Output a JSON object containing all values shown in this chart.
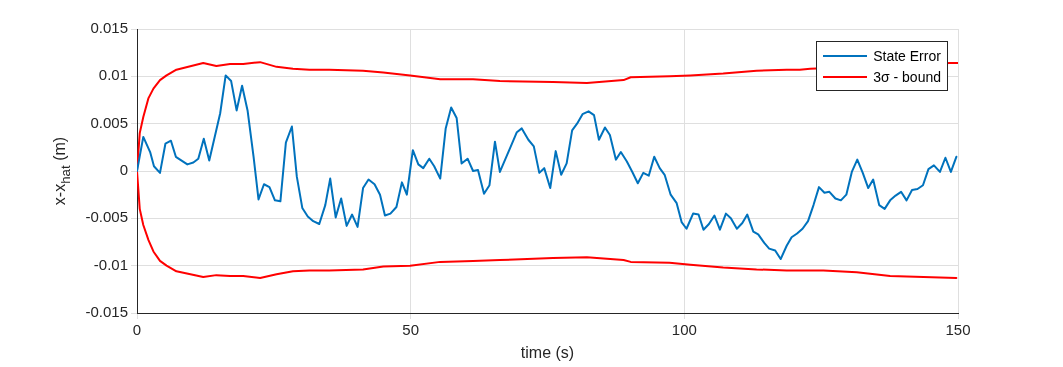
{
  "chart_data": {
    "type": "line",
    "xlabel": "time (s)",
    "ylabel": "x-x$_{hat}$ (m)",
    "xlim": [
      0,
      150
    ],
    "xticks": [
      0,
      50,
      100,
      150
    ],
    "ylim": [
      -0.015,
      0.015
    ],
    "yticks": [
      -0.015,
      -0.01,
      -0.005,
      0,
      0.005,
      0.01,
      0.015
    ],
    "grid": true,
    "legend": "top right",
    "marker": "none",
    "line_style": "solid",
    "series": [
      {
        "name": "State Error",
        "color": "#0072bd",
        "x": [
          0,
          1.15,
          2.4,
          3.1,
          4.2,
          5.2,
          6.2,
          7.1,
          9.2,
          10.3,
          11.2,
          12.2,
          13.2,
          15.2,
          16.2,
          17.2,
          18.2,
          19.2,
          20.2,
          21.3,
          22.2,
          23.2,
          24.2,
          25.2,
          26.2,
          27.2,
          28.3,
          29.2,
          30.2,
          31.2,
          32.2,
          33.3,
          34.4,
          35.3,
          36.3,
          37.3,
          38.3,
          39.3,
          40.3,
          41.3,
          42.3,
          43.4,
          44.4,
          45.3,
          46.3,
          47.4,
          48.4,
          49.3,
          50.4,
          51.4,
          52.3,
          53.4,
          54.3,
          55.4,
          56.4,
          57.4,
          58.4,
          59.3,
          60.4,
          61.4,
          62.3,
          63.4,
          64.4,
          65.4,
          66.3,
          69.4,
          70.3,
          71.5,
          72.5,
          73.5,
          74.4,
          75.5,
          76.5,
          77.5,
          78.5,
          79.5,
          80.4,
          81.4,
          82.5,
          83.5,
          84.4,
          85.5,
          86.4,
          87.5,
          88.4,
          89.5,
          90.5,
          91.5,
          92.5,
          93.5,
          94.5,
          95.5,
          96.4,
          97.5,
          98.6,
          99.5,
          100.4,
          101.6,
          102.6,
          103.5,
          104.5,
          105.5,
          106.5,
          107.6,
          108.5,
          109.6,
          110.6,
          111.5,
          112.6,
          113.5,
          114.6,
          115.5,
          116.6,
          117.6,
          118.7,
          119.6,
          120.6,
          121.6,
          122.6,
          123.6,
          124.6,
          125.6,
          126.5,
          127.6,
          128.6,
          129.6,
          130.6,
          131.6,
          132.6,
          133.6,
          134.5,
          135.6,
          136.6,
          137.6,
          138.6,
          139.6,
          140.6,
          141.6,
          142.6,
          143.6,
          144.6,
          145.6,
          146.7,
          147.7,
          148.7,
          149.7
        ],
        "values": [
          0,
          0.0036,
          0.002,
          0.0005,
          -0.0002,
          0.0029,
          0.0032,
          0.0015,
          0.0007,
          0.0009,
          0.0013,
          0.0034,
          0.0011,
          0.0061,
          0.0101,
          0.0095,
          0.0064,
          0.009,
          0.0064,
          0.0015,
          -0.003,
          -0.0014,
          -0.0017,
          -0.0031,
          -0.0032,
          0.003,
          0.0047,
          -0.0006,
          -0.0039,
          -0.0048,
          -0.0053,
          -0.0056,
          -0.0036,
          -0.0008,
          -0.0049,
          -0.0029,
          -0.0058,
          -0.0046,
          -0.0059,
          -0.0018,
          -0.0009,
          -0.0014,
          -0.0025,
          -0.0047,
          -0.0045,
          -0.0038,
          -0.0012,
          -0.0025,
          0.0022,
          0.0007,
          0.0003,
          0.0013,
          0.0005,
          -0.0008,
          0.0045,
          0.0067,
          0.0056,
          0.0008,
          0.0013,
          0.0,
          0.0001,
          -0.0024,
          -0.0015,
          0.0031,
          -0.0001,
          0.0041,
          0.0045,
          0.0033,
          0.0026,
          -0.0002,
          0.0003,
          -0.0018,
          0.0021,
          -0.0004,
          0.0008,
          0.0043,
          0.005,
          0.006,
          0.0063,
          0.0059,
          0.0033,
          0.0046,
          0.0038,
          0.0012,
          0.002,
          0.001,
          -0.0001,
          -0.0013,
          -0.0002,
          -0.0005,
          0.0015,
          0.0003,
          -0.0004,
          -0.0025,
          -0.0034,
          -0.0054,
          -0.0061,
          -0.0045,
          -0.0046,
          -0.0062,
          -0.0056,
          -0.0047,
          -0.0062,
          -0.0045,
          -0.005,
          -0.0061,
          -0.0055,
          -0.0046,
          -0.0064,
          -0.0067,
          -0.0076,
          -0.0082,
          -0.0084,
          -0.0093,
          -0.0079,
          -0.007,
          -0.0066,
          -0.0061,
          -0.0053,
          -0.0036,
          -0.0017,
          -0.0023,
          -0.0022,
          -0.0029,
          -0.0031,
          -0.0025,
          -0.0001,
          0.0012,
          -0.0002,
          -0.0018,
          -0.0009,
          -0.0036,
          -0.004,
          -0.0031,
          -0.0026,
          -0.0022,
          -0.0031,
          -0.002,
          -0.0019,
          -0.0015,
          0.0002,
          0.0006,
          -0.0001,
          0.0014,
          -0.0001,
          0.0015
        ]
      },
      {
        "name": "3σ - bound",
        "color": "#ff0000",
        "x": [
          149.7,
          143.7,
          137.6,
          131.5,
          125.4,
          118.7,
          113.2,
          107.1,
          101.1,
          97.3,
          90.2,
          88.9,
          82.2,
          76,
          66.3,
          61.4,
          55.4,
          49.9,
          45,
          41.3,
          35.1,
          31.5,
          28.5,
          25.5,
          22.5,
          19.4,
          17,
          14.5,
          12.1,
          7.2,
          5.4,
          4.2,
          3,
          2.1,
          1.15,
          0.5,
          0,
          0.5,
          1.15,
          2.1,
          3,
          4.2,
          5.4,
          7.2,
          12.1,
          14.5,
          17,
          19.4,
          22.5,
          25.5,
          28.5,
          31.5,
          35.1,
          41.3,
          45,
          49.9,
          55.4,
          61.4,
          66.3,
          76,
          82.2,
          88.9,
          90.2,
          97.3,
          101.1,
          107.1,
          113.2,
          118.7,
          121.1,
          123,
          148.5,
          150
        ],
        "values": [
          -0.0113,
          -0.0112,
          -0.0111,
          -0.0107,
          -0.0105,
          -0.0105,
          -0.0104,
          -0.0102,
          -0.0099,
          -0.0097,
          -0.0096,
          -0.0094,
          -0.0091,
          -0.0092,
          -0.0094,
          -0.0095,
          -0.0096,
          -0.01,
          -0.0101,
          -0.0104,
          -0.0105,
          -0.0105,
          -0.0106,
          -0.0109,
          -0.0113,
          -0.0111,
          -0.0111,
          -0.011,
          -0.0112,
          -0.0106,
          -0.01,
          -0.0095,
          -0.0085,
          -0.0073,
          -0.0057,
          -0.004,
          0,
          0.004,
          0.0057,
          0.0077,
          0.0087,
          0.0096,
          0.0101,
          0.0107,
          0.0114,
          0.0111,
          0.0113,
          0.0113,
          0.0115,
          0.011,
          0.0108,
          0.0107,
          0.0107,
          0.0106,
          0.0104,
          0.0101,
          0.0097,
          0.0097,
          0.0095,
          0.0094,
          0.0093,
          0.0096,
          0.0099,
          0.01,
          0.0101,
          0.0103,
          0.0106,
          0.0107,
          0.0107,
          0.0108,
          0.0114,
          0.0114
        ]
      }
    ]
  }
}
